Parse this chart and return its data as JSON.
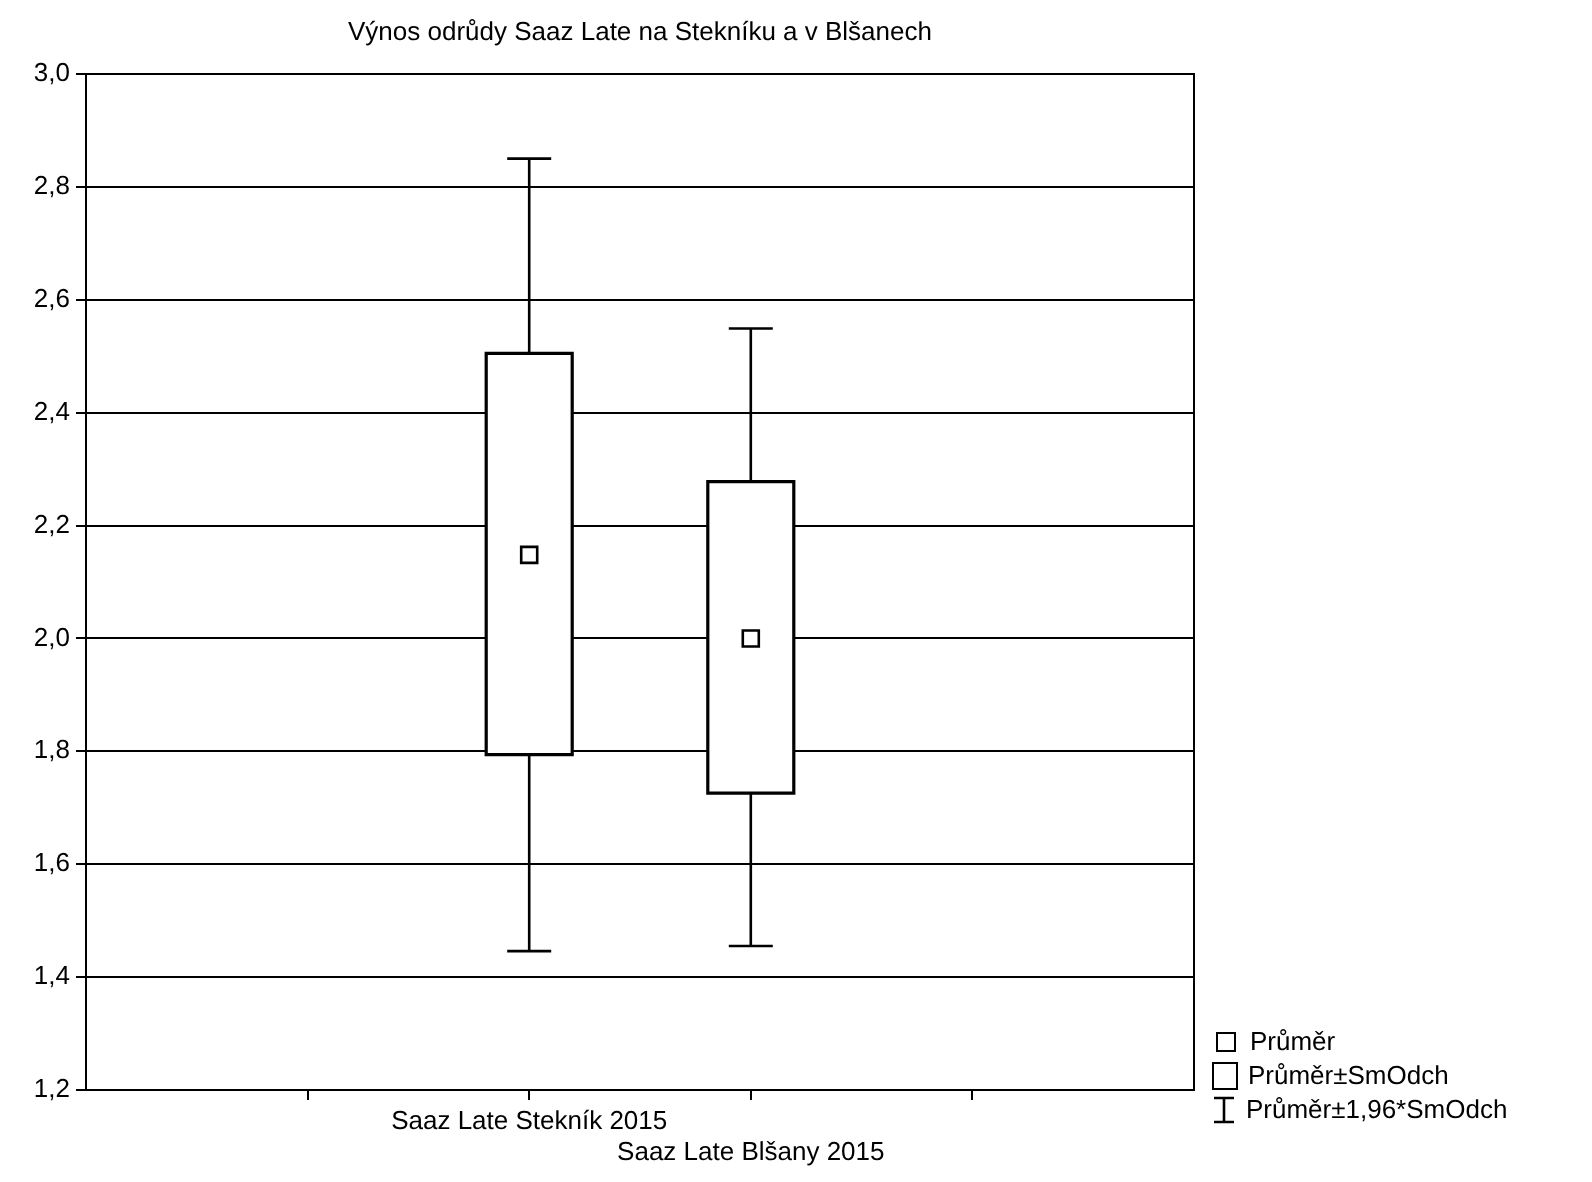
{
  "chart_data": {
    "type": "box",
    "title": "Výnos odrůdy Saaz Late na Stekníku a v Blšanech",
    "categories": [
      "Saaz Late Stekník 2015",
      "Saaz Late Blšany 2015"
    ],
    "boxes": [
      {
        "low": 1.446,
        "q1": 1.794,
        "median": 2.148,
        "q3": 2.505,
        "high": 2.85
      },
      {
        "low": 1.455,
        "q1": 1.726,
        "median": 2.0,
        "q3": 2.278,
        "high": 2.549
      }
    ],
    "color": "#ffffff",
    "ylim": [
      1.2,
      3.0
    ],
    "yticks": [
      {
        "value": 1.2,
        "label": "1,2"
      },
      {
        "value": 1.4,
        "label": "1,4"
      },
      {
        "value": 1.6,
        "label": "1,6"
      },
      {
        "value": 1.8,
        "label": "1,8"
      },
      {
        "value": 2.0,
        "label": "2,0"
      },
      {
        "value": 2.2,
        "label": "2,2"
      },
      {
        "value": 2.4,
        "label": "2,4"
      },
      {
        "value": 2.6,
        "label": "2,6"
      },
      {
        "value": 2.8,
        "label": "2,8"
      },
      {
        "value": 3.0,
        "label": "3,0"
      }
    ],
    "grid": "y",
    "annotations": [
      "Průměr",
      "Průměr±SmOdch",
      "Průměr±1,96*SmOdch"
    ]
  }
}
